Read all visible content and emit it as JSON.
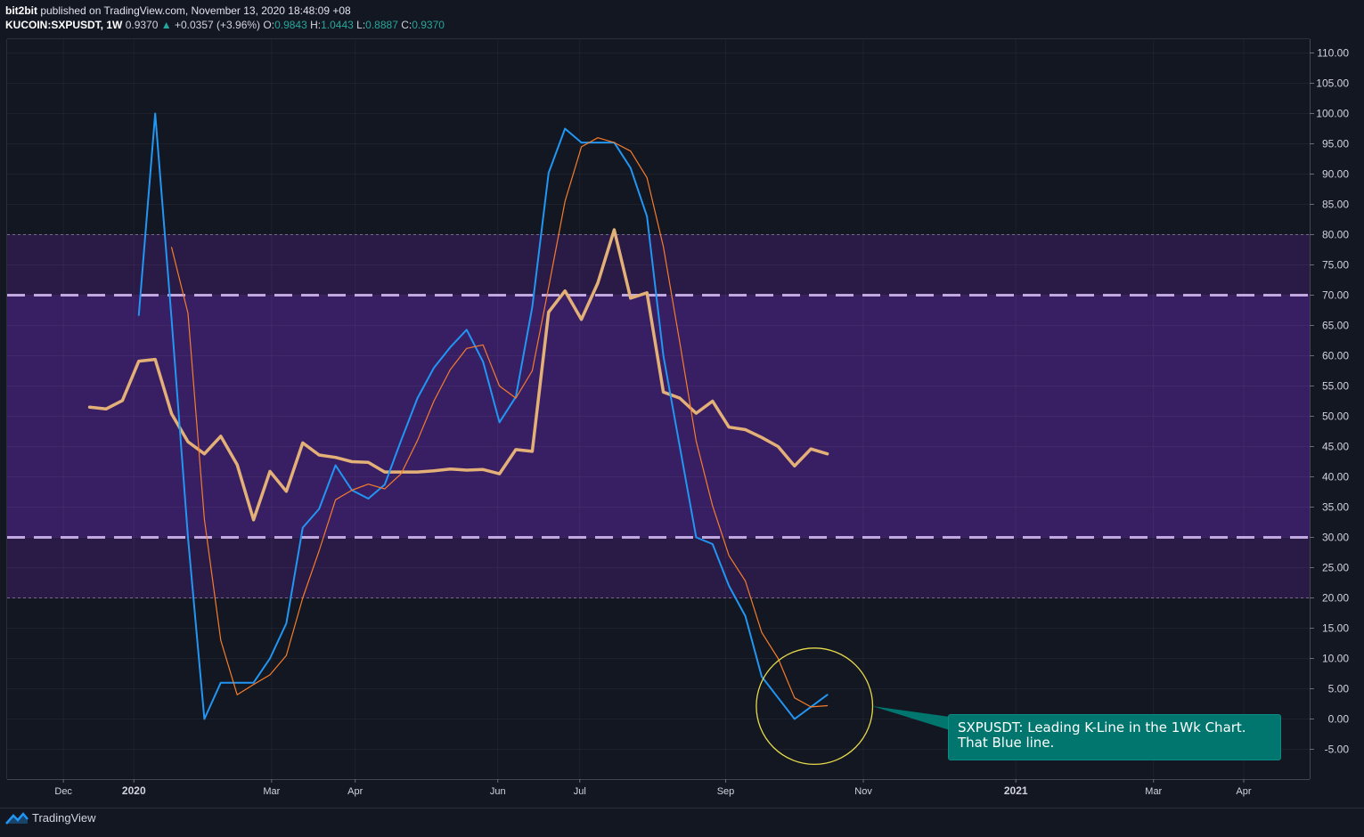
{
  "header": {
    "user": "bit2bit",
    "published_text": " published on TradingView.com, November 13, 2020 18:48:09 +08",
    "symbol": "KUCOIN:SXPUSDT, 1W",
    "last": "0.9370",
    "arrow": "▲",
    "change": "+0.0357 (+3.96%)",
    "o_label": "O:",
    "o_value": "0.9843",
    "h_label": "H:",
    "h_value": "1.0443",
    "l_label": "L:",
    "l_value": "0.8887",
    "c_label": "C:",
    "c_value": "0.9370"
  },
  "footer": {
    "brand": "TradingView",
    "logo_icon": "tradingview-logo-icon"
  },
  "annotation": {
    "line1": "SXPUSDT: Leading K-Line in the 1Wk Chart.",
    "line2": "That Blue line."
  },
  "colors": {
    "background": "#131722",
    "band_outer": "#2a1b46",
    "band_inner": "#381f63",
    "level_dash": "#c9b0e8",
    "blue_line": "#2196f3",
    "orange_thin": "#f57c2b",
    "tan_thick": "#e3b077",
    "circle": "#e6d94a",
    "callout": "#00766e",
    "up": "#26a69a"
  },
  "chart_data": {
    "type": "line",
    "ylim": [
      -10,
      112
    ],
    "y_ticks": [
      "110.00",
      "105.00",
      "100.00",
      "95.00",
      "90.00",
      "85.00",
      "80.00",
      "75.00",
      "70.00",
      "65.00",
      "60.00",
      "55.00",
      "50.00",
      "45.00",
      "40.00",
      "35.00",
      "30.00",
      "25.00",
      "20.00",
      "15.00",
      "10.00",
      "5.00",
      "0.00",
      "-5.00"
    ],
    "x_ticks": [
      {
        "label": "Dec",
        "w": -3.6,
        "bold": false
      },
      {
        "label": "2020",
        "w": 0.7,
        "bold": true
      },
      {
        "label": "Mar",
        "w": 9.1,
        "bold": false
      },
      {
        "label": "Apr",
        "w": 14.2,
        "bold": false
      },
      {
        "label": "Jun",
        "w": 22.9,
        "bold": false
      },
      {
        "label": "Jul",
        "w": 27.9,
        "bold": false
      },
      {
        "label": "Sep",
        "w": 36.8,
        "bold": false
      },
      {
        "label": "Nov",
        "w": 45.2,
        "bold": false
      },
      {
        "label": "2021",
        "w": 54.5,
        "bold": true
      },
      {
        "label": "Mar",
        "w": 62.9,
        "bold": false
      },
      {
        "label": "Apr",
        "w": 68.4,
        "bold": false
      }
    ],
    "bands": [
      {
        "from": 20,
        "to": 80,
        "role": "outer"
      },
      {
        "from": 30,
        "to": 70,
        "role": "inner"
      }
    ],
    "levels": [
      {
        "value": 80,
        "style": "thin"
      },
      {
        "value": 70,
        "style": "thick"
      },
      {
        "value": 30,
        "style": "thick"
      },
      {
        "value": 20,
        "style": "thin"
      }
    ],
    "series": [
      {
        "role": "thick_tan",
        "start_w": -2,
        "values": [
          51.5,
          51.2,
          52.6,
          59.1,
          59.4,
          50.4,
          45.8,
          43.8,
          46.7,
          42.0,
          32.9,
          40.9,
          37.6,
          45.6,
          43.6,
          43.2,
          42.5,
          42.4,
          40.8,
          40.8,
          40.8,
          41.0,
          41.3,
          41.1,
          41.2,
          40.5,
          44.5,
          44.2,
          67.2,
          70.7,
          66.0,
          72.0,
          80.8,
          69.5,
          70.4,
          54.0,
          53.0,
          50.5,
          52.5,
          48.2,
          47.8,
          46.5,
          45.0,
          41.8,
          44.6,
          43.8
        ]
      },
      {
        "role": "blue",
        "start_w": 1,
        "values": [
          66.7,
          100.0,
          66.0,
          30.0,
          0.0,
          6.0,
          6.0,
          6.0,
          10.0,
          15.8,
          31.6,
          34.7,
          41.9,
          37.8,
          36.4,
          38.7,
          46.0,
          53.0,
          58.0,
          61.4,
          64.3,
          59.0,
          49.0,
          53.2,
          68.0,
          90.2,
          97.5,
          95.2,
          95.2,
          95.2,
          91.0,
          83.0,
          60.0,
          45.0,
          30.0,
          28.9,
          22.0,
          17.0,
          7.0,
          3.5,
          0.0,
          2.0,
          4.0
        ]
      },
      {
        "role": "orange",
        "start_w": 3,
        "values": [
          77.9,
          67.0,
          33.0,
          13.0,
          4.0,
          5.7,
          7.3,
          10.5,
          20.0,
          27.8,
          36.2,
          37.8,
          38.8,
          38.0,
          40.5,
          46.0,
          52.5,
          57.7,
          61.2,
          61.8,
          55.0,
          53.0,
          57.5,
          71.3,
          85.5,
          94.5,
          96.0,
          95.2,
          93.8,
          89.4,
          78.0,
          62.2,
          45.9,
          35.2,
          27.0,
          22.8,
          14.3,
          10.0,
          3.5,
          2.0,
          2.2
        ]
      }
    ],
    "highlight": {
      "w": 42,
      "value": 3,
      "radius_value": 9.6,
      "shape": "circle"
    }
  }
}
